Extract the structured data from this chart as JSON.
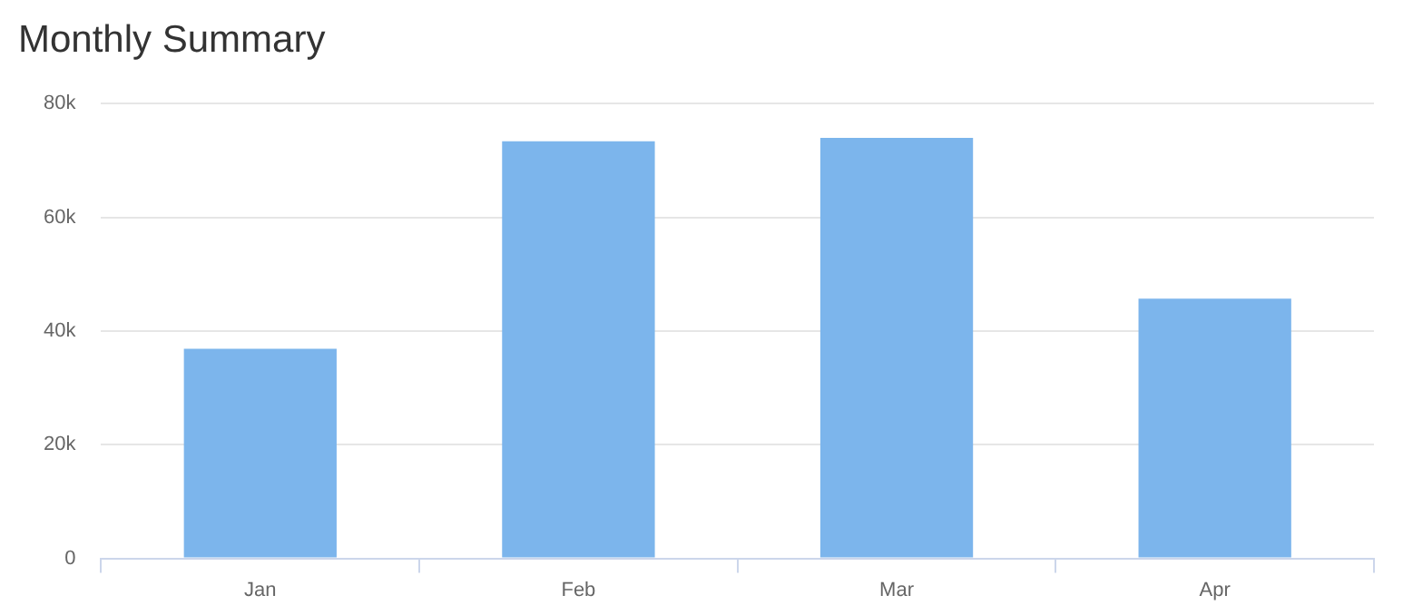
{
  "chart_data": {
    "type": "bar",
    "title": "Monthly Summary",
    "categories": [
      "Jan",
      "Feb",
      "Mar",
      "Apr"
    ],
    "values": [
      36900,
      73400,
      74000,
      45700
    ],
    "color": "#7cb5ec",
    "ylim": [
      0,
      80000
    ],
    "yticks": [
      {
        "value": 0,
        "label": "0"
      },
      {
        "value": 20000,
        "label": "20k"
      },
      {
        "value": 40000,
        "label": "40k"
      },
      {
        "value": 60000,
        "label": "60k"
      },
      {
        "value": 80000,
        "label": "80k"
      }
    ],
    "grid": "y",
    "legend": false
  }
}
